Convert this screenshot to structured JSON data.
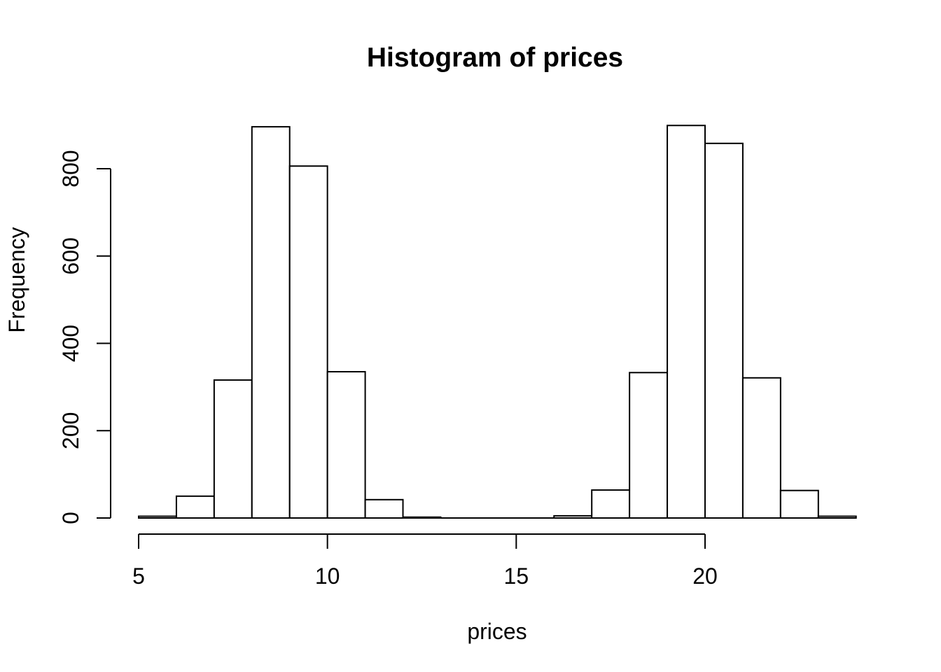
{
  "figure": {
    "background": "#ffffff",
    "foreground": "#000000"
  },
  "chart_data": {
    "type": "bar",
    "subtype": "histogram",
    "title": "Histogram of prices",
    "xlabel": "prices",
    "ylabel": "Frequency",
    "bin_edges": [
      5,
      6,
      7,
      8,
      9,
      10,
      11,
      12,
      13,
      14,
      15,
      16,
      17,
      18,
      19,
      20,
      21,
      22,
      23,
      24
    ],
    "values": [
      4,
      50,
      316,
      896,
      806,
      335,
      42,
      2,
      0,
      0,
      0,
      5,
      64,
      333,
      899,
      858,
      321,
      63,
      4
    ],
    "x_ticks": [
      5,
      10,
      15,
      20
    ],
    "y_ticks": [
      0,
      200,
      400,
      600,
      800
    ],
    "xlim": [
      5,
      24
    ],
    "ylim": [
      0,
      900
    ],
    "bar_fill": "#ffffff",
    "bar_stroke": "#000000",
    "axis_color": "#000000",
    "grid": "off",
    "legend": "none"
  }
}
